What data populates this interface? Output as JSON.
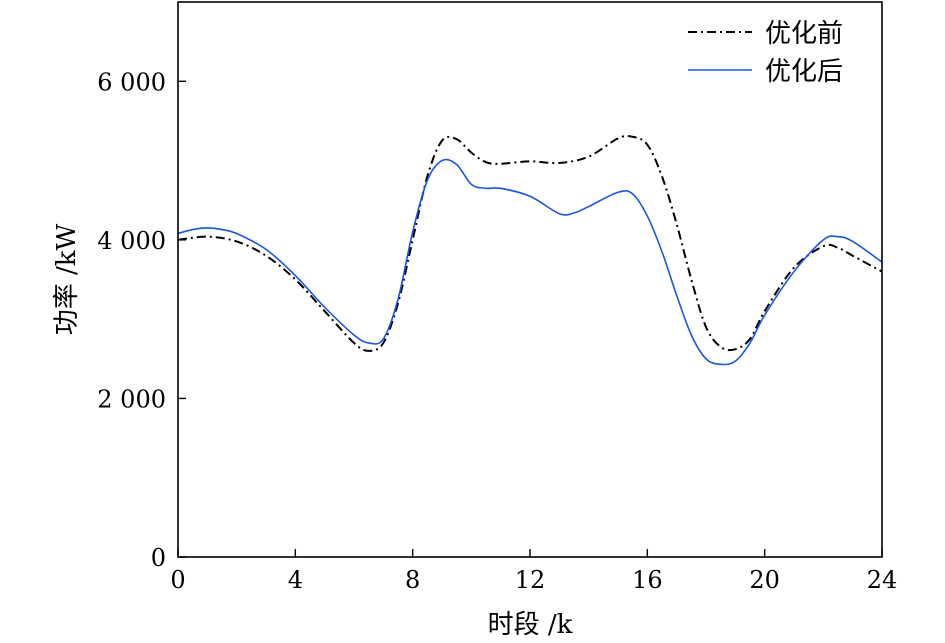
{
  "chart_data": {
    "type": "line",
    "xlabel": "时段 /k",
    "ylabel": "功率 /kW",
    "xlim": [
      0,
      24
    ],
    "ylim": [
      0,
      7000
    ],
    "xticks": [
      0,
      4,
      8,
      12,
      16,
      20,
      24
    ],
    "xtick_labels": [
      "0",
      "4",
      "8",
      "12",
      "16",
      "20",
      "24"
    ],
    "yticks": [
      0,
      2000,
      4000,
      6000
    ],
    "ytick_labels": [
      "0",
      "2 000",
      "4 000",
      "6 000"
    ],
    "grid": false,
    "legend_position": "top-right",
    "series": [
      {
        "name": "优化前",
        "color": "#000000",
        "style": "dash-dot",
        "x": [
          0,
          1,
          2,
          3,
          4,
          5,
          6,
          6.5,
          7,
          7.5,
          8,
          8.5,
          9,
          9.5,
          10,
          10.5,
          11,
          12,
          13,
          14,
          15,
          15.5,
          16,
          16.5,
          17,
          17.5,
          18,
          18.5,
          19,
          19.5,
          20,
          21,
          22,
          22.5,
          23,
          24
        ],
        "y": [
          4000,
          4040,
          3980,
          3800,
          3500,
          3100,
          2700,
          2600,
          2700,
          3200,
          4000,
          4800,
          5250,
          5270,
          5100,
          4980,
          4960,
          4990,
          4970,
          5050,
          5280,
          5300,
          5200,
          4800,
          4200,
          3500,
          2900,
          2650,
          2620,
          2750,
          3100,
          3650,
          3920,
          3900,
          3800,
          3600
        ]
      },
      {
        "name": "优化后",
        "color": "#1a56db",
        "style": "solid",
        "x": [
          0,
          0.5,
          1,
          1.5,
          2,
          3,
          4,
          5,
          6,
          6.5,
          7,
          7.5,
          8,
          8.5,
          9,
          9.5,
          10,
          10.5,
          11,
          12,
          13,
          13.5,
          14,
          15,
          15.5,
          16,
          16.5,
          17,
          17.5,
          18,
          18.5,
          19,
          19.5,
          20,
          21,
          22,
          22.5,
          23,
          24
        ],
        "y": [
          4080,
          4130,
          4150,
          4130,
          4080,
          3880,
          3550,
          3150,
          2800,
          2700,
          2750,
          3250,
          4100,
          4750,
          5000,
          4950,
          4700,
          4650,
          4650,
          4550,
          4330,
          4340,
          4420,
          4600,
          4580,
          4300,
          3850,
          3300,
          2800,
          2500,
          2430,
          2470,
          2700,
          3050,
          3600,
          4000,
          4040,
          3980,
          3720
        ]
      }
    ]
  }
}
